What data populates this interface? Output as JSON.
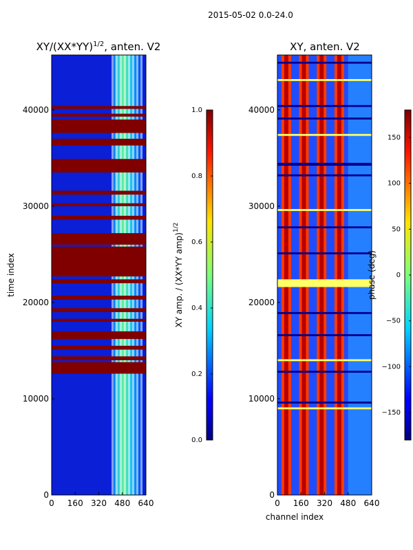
{
  "suptitle": "2015-05-02 0.0-24.0",
  "chart_data": [
    {
      "type": "heatmap",
      "title": "XY/(XX*YY)",
      "title_exponent": "1/2",
      "title_suffix": ", anten. V2",
      "ylabel": "time index",
      "xlabel": "",
      "xlim": [
        0,
        640
      ],
      "ylim": [
        0,
        45700
      ],
      "xticks": [
        0,
        160,
        320,
        480,
        640
      ],
      "yticks": [
        0,
        10000,
        20000,
        30000,
        40000
      ],
      "colormap": "jet",
      "colorbar": {
        "label": "XY amp. / (XX*YY amp)",
        "label_exponent": "1/2",
        "range": [
          0.0,
          1.0
        ],
        "ticks": [
          "0.0",
          "0.2",
          "0.4",
          "0.6",
          "0.8",
          "1.0"
        ]
      },
      "saturated_time_bands": [
        [
          12600,
          13800
        ],
        [
          14000,
          14400
        ],
        [
          15100,
          15500
        ],
        [
          16200,
          17000
        ],
        [
          18000,
          18300
        ],
        [
          19000,
          19400
        ],
        [
          20300,
          20700
        ],
        [
          22000,
          22400
        ],
        [
          22700,
          25800
        ],
        [
          26000,
          27200
        ],
        [
          28600,
          29000
        ],
        [
          30000,
          30300
        ],
        [
          31200,
          31600
        ],
        [
          33500,
          34900
        ],
        [
          36300,
          37000
        ],
        [
          37600,
          39000
        ],
        [
          39300,
          39600
        ],
        [
          40100,
          40400
        ]
      ],
      "bright_channel_range": [
        400,
        620
      ]
    },
    {
      "type": "heatmap",
      "title": "XY, anten. V2",
      "ylabel": "",
      "xlabel": "channel index",
      "xlim": [
        0,
        640
      ],
      "ylim": [
        0,
        45700
      ],
      "xticks": [
        0,
        160,
        320,
        480,
        640
      ],
      "yticks": [
        0,
        10000,
        20000,
        30000,
        40000
      ],
      "colormap": "jet",
      "colorbar": {
        "label": "phase (deg)",
        "range": [
          -180,
          180
        ],
        "ticks": [
          "−150",
          "−100",
          "−50",
          "0",
          "50",
          "100",
          "150"
        ]
      },
      "phase_stripe_channels": [
        60,
        180,
        300,
        420
      ],
      "flagged_time_bands": [
        [
          8900,
          9100
        ],
        [
          9500,
          9700
        ],
        [
          12700,
          12900
        ],
        [
          13900,
          14100
        ],
        [
          16500,
          16700
        ],
        [
          18800,
          19000
        ],
        [
          21600,
          22400
        ],
        [
          25000,
          25200
        ],
        [
          27700,
          27900
        ],
        [
          29500,
          29700
        ],
        [
          33100,
          33300
        ],
        [
          34200,
          34500
        ],
        [
          37300,
          37500
        ],
        [
          39000,
          39200
        ],
        [
          40300,
          40500
        ],
        [
          43000,
          43200
        ],
        [
          44800,
          45000
        ]
      ]
    }
  ]
}
